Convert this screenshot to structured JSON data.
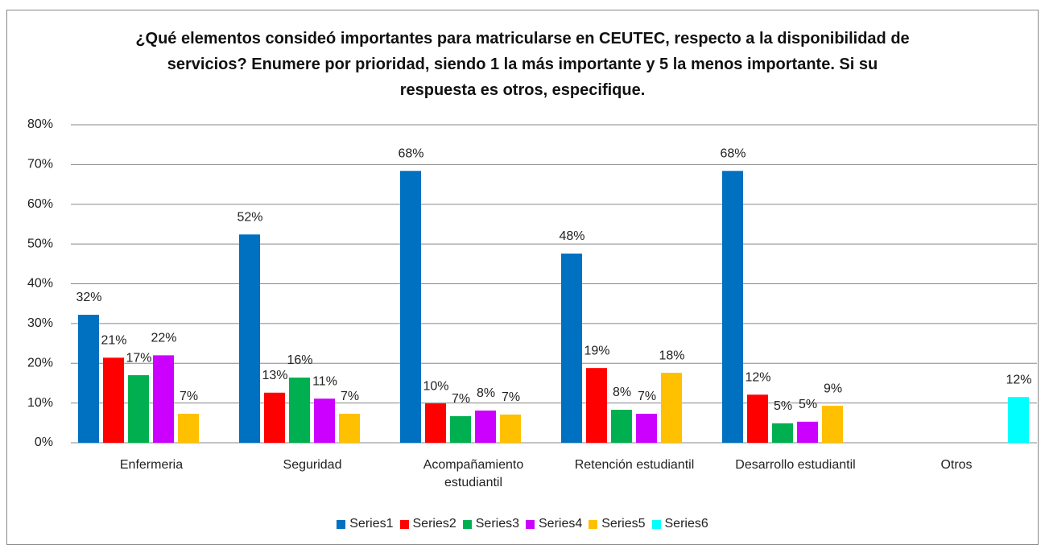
{
  "chart_data": {
    "type": "bar",
    "title": "¿Qué elementos consideó importantes para matricularse en CEUTEC, respecto a la disponibilidad  de servicios? Enumere por prioridad, siendo 1 la más importante y 5 la menos importante. Si su respuesta es otros, especifique.",
    "categories": [
      "Enfermeria",
      "Seguridad",
      "Acompañamiento estudiantil",
      "Retención estudiantil",
      "Desarrollo estudiantil",
      "Otros"
    ],
    "series": [
      {
        "name": "Series1",
        "color": "#0070C0",
        "values": [
          32.2,
          52.4,
          68.4,
          47.6,
          68.4,
          null
        ],
        "value_labels": [
          "32%",
          "52%",
          "68%",
          "48%",
          "68%",
          null
        ]
      },
      {
        "name": "Series2",
        "color": "#FF0000",
        "values": [
          21.4,
          12.6,
          9.9,
          18.8,
          12.1,
          null
        ],
        "value_labels": [
          "21%",
          "13%",
          "10%",
          "19%",
          "12%",
          null
        ]
      },
      {
        "name": "Series3",
        "color": "#00B050",
        "values": [
          17,
          16.4,
          6.7,
          8.3,
          4.9,
          null
        ],
        "value_labels": [
          "17%",
          "16%",
          "7%",
          "8%",
          "5%",
          null
        ]
      },
      {
        "name": "Series4",
        "color": "#CC00FF",
        "values": [
          22,
          11.1,
          8.1,
          7.3,
          5.3,
          null
        ],
        "value_labels": [
          "22%",
          "11%",
          "8%",
          "7%",
          "5%",
          null
        ]
      },
      {
        "name": "Series5",
        "color": "#FFC000",
        "values": [
          7.3,
          7.3,
          7.1,
          17.6,
          9.3,
          null
        ],
        "value_labels": [
          "7%",
          "7%",
          "7%",
          "18%",
          "9%",
          null
        ]
      },
      {
        "name": "Series6",
        "color": "#00FFFF",
        "values": [
          null,
          null,
          null,
          null,
          null,
          11.5
        ],
        "value_labels": [
          null,
          null,
          null,
          null,
          null,
          "12%"
        ]
      }
    ],
    "ylim": [
      0,
      80
    ],
    "yticks": [
      {
        "value": 0,
        "label": "0%"
      },
      {
        "value": 10,
        "label": "10%"
      },
      {
        "value": 20,
        "label": "20%"
      },
      {
        "value": 30,
        "label": "30%"
      },
      {
        "value": 40,
        "label": "40%"
      },
      {
        "value": 50,
        "label": "50%"
      },
      {
        "value": 60,
        "label": "60%"
      },
      {
        "value": 70,
        "label": "70%"
      },
      {
        "value": 80,
        "label": "80%"
      }
    ],
    "grid": true,
    "legend": "bottom"
  }
}
